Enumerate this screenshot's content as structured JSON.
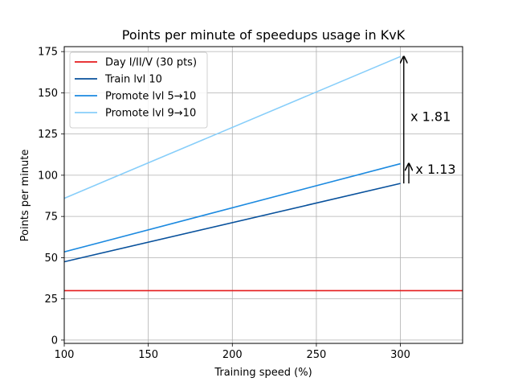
{
  "chart_data": {
    "type": "line",
    "title": "Points per minute of speedups usage in KvK",
    "xlabel": "Training speed (%)",
    "ylabel": "Points per minute",
    "xlim": [
      100,
      337
    ],
    "ylim": [
      -2,
      178
    ],
    "xticks": [
      100,
      150,
      200,
      250,
      300
    ],
    "yticks": [
      0,
      25,
      50,
      75,
      100,
      125,
      150,
      175
    ],
    "grid": true,
    "legend_position": "top-left",
    "series": [
      {
        "name": "Day I/II/V (30 pts)",
        "color": "#e41a1c",
        "x": [
          100,
          337
        ],
        "y": [
          30,
          30
        ]
      },
      {
        "name": "Train lvl 10",
        "color": "#08519c",
        "x": [
          100,
          300
        ],
        "y": [
          47.5,
          95
        ]
      },
      {
        "name": "Promote lvl 5→10",
        "color": "#1c8ae0",
        "x": [
          100,
          300
        ],
        "y": [
          53.5,
          107
        ]
      },
      {
        "name": "Promote lvl 9→10",
        "color": "#87cefa",
        "x": [
          100,
          300
        ],
        "y": [
          86,
          172
        ]
      }
    ],
    "annotations": [
      {
        "text": "x 1.81",
        "arrow_x": 302,
        "arrow_from": 95,
        "arrow_to": 172,
        "text_x": 306,
        "text_y": 133
      },
      {
        "text": "x 1.13",
        "arrow_x": 305,
        "arrow_from": 95,
        "arrow_to": 107,
        "text_x": 309,
        "text_y": 101
      }
    ]
  }
}
